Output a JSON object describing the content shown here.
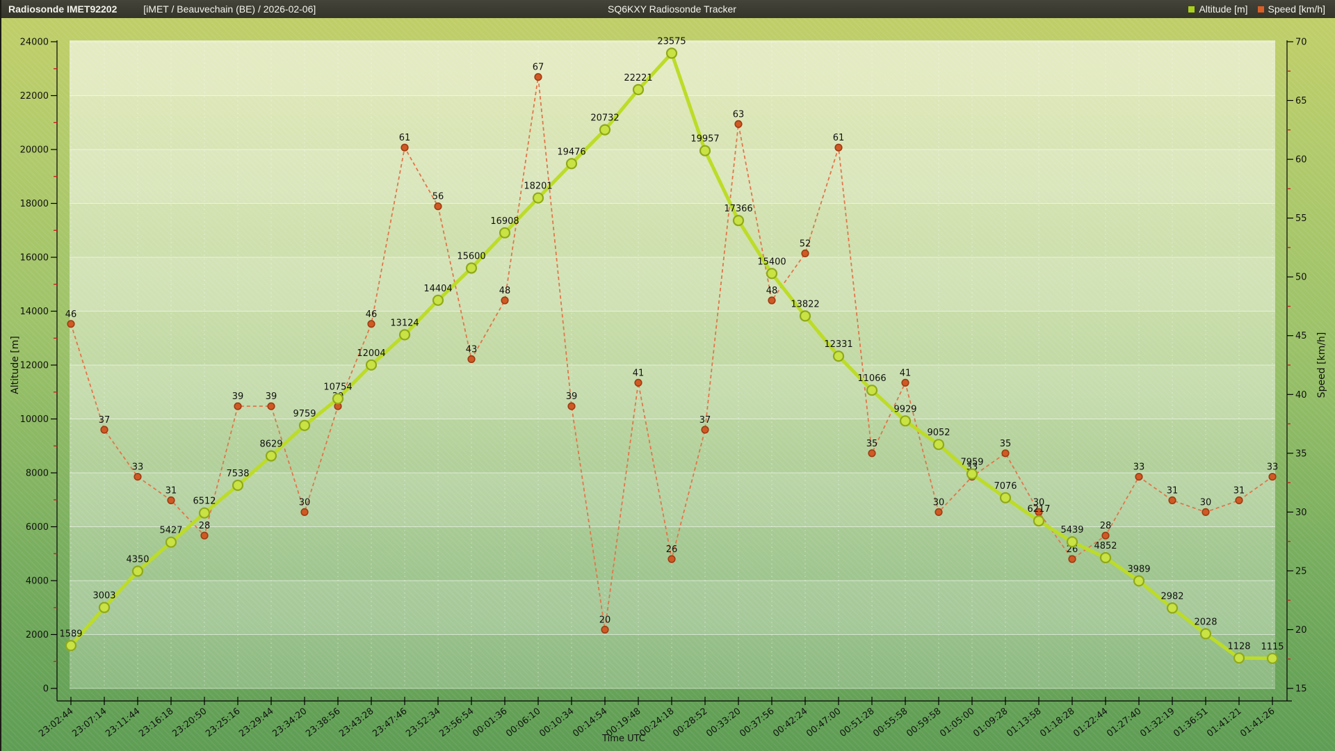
{
  "header": {
    "station": "Radiosonde IMET92202",
    "subtitle": "[iMET / Beauvechain (BE) / 2026-02-06]",
    "app_title": "SQ6KXY Radiosonde Tracker",
    "legend": [
      {
        "label": "Altitude [m]",
        "color": "#a9cf1d"
      },
      {
        "label": "Speed [km/h]",
        "color": "#d95f27"
      }
    ]
  },
  "chart_data": {
    "type": "line",
    "title": "SQ6KXY Radiosonde Tracker",
    "x_categories": [
      "23:02:44",
      "23:07:14",
      "23:11:44",
      "23:16:18",
      "23:20:50",
      "23:25:16",
      "23:29:44",
      "23:34:20",
      "23:38:56",
      "23:43:28",
      "23:47:46",
      "23:52:34",
      "23:56:54",
      "00:01:36",
      "00:06:10",
      "00:10:34",
      "00:14:54",
      "00:19:48",
      "00:24:18",
      "00:28:52",
      "00:33:20",
      "00:37:56",
      "00:42:24",
      "00:47:00",
      "00:51:28",
      "00:55:58",
      "00:59:58",
      "01:05:00",
      "01:09:28",
      "01:13:58",
      "01:18:28",
      "01:22:44",
      "01:27:40",
      "01:32:19",
      "01:36:51",
      "01:41:21",
      "01:41:26"
    ],
    "series": [
      {
        "name": "Altitude [m]",
        "axis": "left",
        "dashed": false,
        "color": "#bcdc28",
        "marker_fill": "#c9e244",
        "marker_stroke": "#8fa91a",
        "values": [
          1589,
          3003,
          4350,
          5427,
          6512,
          7538,
          8629,
          9759,
          10754,
          12004,
          13124,
          14404,
          15600,
          16908,
          18201,
          19476,
          20732,
          22221,
          23575,
          19957,
          17366,
          15400,
          13822,
          12331,
          11066,
          9929,
          9052,
          7959,
          7076,
          6217,
          5439,
          4852,
          3989,
          2982,
          2028,
          1128,
          1115
        ]
      },
      {
        "name": "Speed [km/h]",
        "axis": "right",
        "dashed": true,
        "color": "#e1764b",
        "marker_fill": "#d05a24",
        "marker_stroke": "#9e3b13",
        "values": [
          46,
          37,
          33,
          31,
          28,
          39,
          39,
          30,
          39,
          46,
          61,
          56,
          43,
          48,
          67,
          39,
          20,
          41,
          26,
          37,
          63,
          48,
          52,
          61,
          35,
          41,
          30,
          33,
          35,
          30,
          26,
          28,
          33,
          31,
          30,
          31,
          33
        ]
      }
    ],
    "left_axis": {
      "label": "Altitude [m]",
      "min": 0,
      "max": 24000,
      "major_step": 2000,
      "minor_step": 1000,
      "minor_tick_color": "#cc2020"
    },
    "right_axis": {
      "label": "Speed [km/h]",
      "min": 15,
      "max": 70,
      "major_step": 5,
      "minor_step": 2.5,
      "minor_tick_color": "#cc2020"
    },
    "x_axis": {
      "label": "Time UTC"
    },
    "grid": true,
    "legend_position": "top-right"
  }
}
